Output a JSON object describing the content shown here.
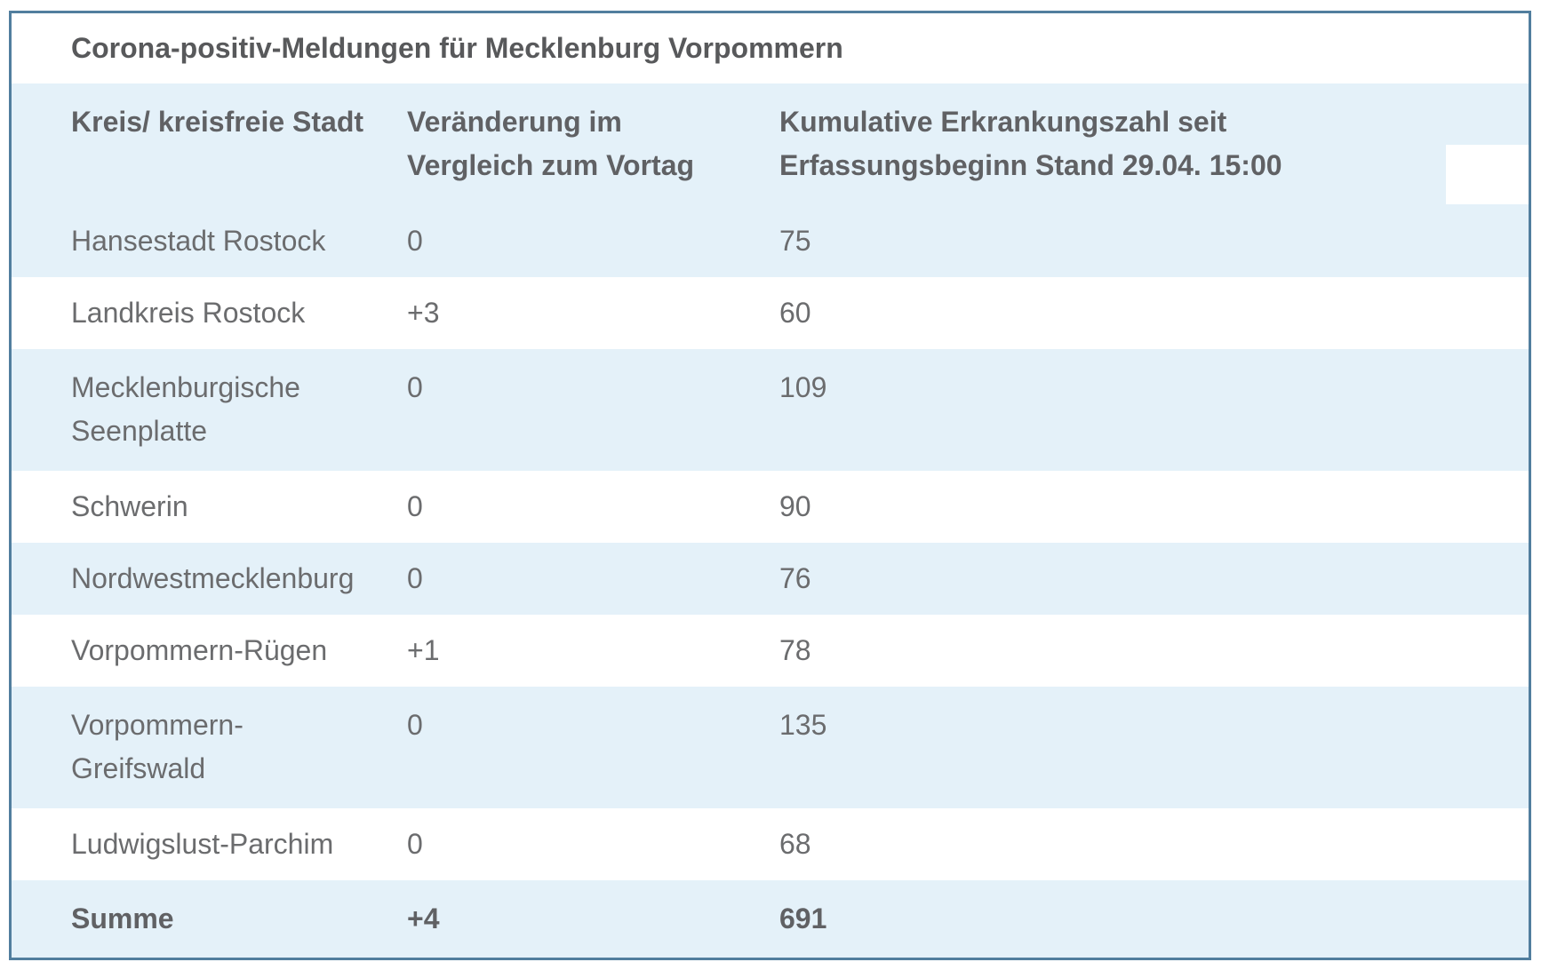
{
  "colors": {
    "border": "#517e9e",
    "stripe_blue": "#e4f1f9",
    "title_text": "#58595b",
    "header_text": "#606164",
    "body_text": "#6b6c6e",
    "page_bg": "#ffffff"
  },
  "chart_data": {
    "type": "table",
    "title": "Corona-positiv-Meldungen für Mecklenburg Vorpommern",
    "columns": [
      "Kreis/ kreisfreie Stadt",
      "Veränderung im\nVergleich zum Vortag",
      "Kumulative Erkrankungszahl seit\nErfassungsbeginn Stand 29.04. 15:00"
    ],
    "rows": [
      [
        "Hansestadt Rostock",
        "0",
        "75"
      ],
      [
        "Landkreis Rostock",
        "+3",
        "60"
      ],
      [
        "Mecklenburgische\nSeenplatte",
        "0",
        "109"
      ],
      [
        "Schwerin",
        "0",
        "90"
      ],
      [
        "Nordwestmecklenburg",
        "0",
        "76"
      ],
      [
        "Vorpommern-Rügen",
        "+1",
        "78"
      ],
      [
        "Vorpommern-\nGreifswald",
        "0",
        "135"
      ],
      [
        "Ludwigslust-Parchim",
        "0",
        "68"
      ]
    ],
    "total_row": [
      "Summe",
      "+4",
      "691"
    ],
    "layout": {
      "striping": "alternating pale blue / white, first data row blue",
      "header_background": "pale blue",
      "total_row_background": "pale blue, bold",
      "grid": "off",
      "white_patch_overlay": "bottom-right corner of header row"
    }
  }
}
